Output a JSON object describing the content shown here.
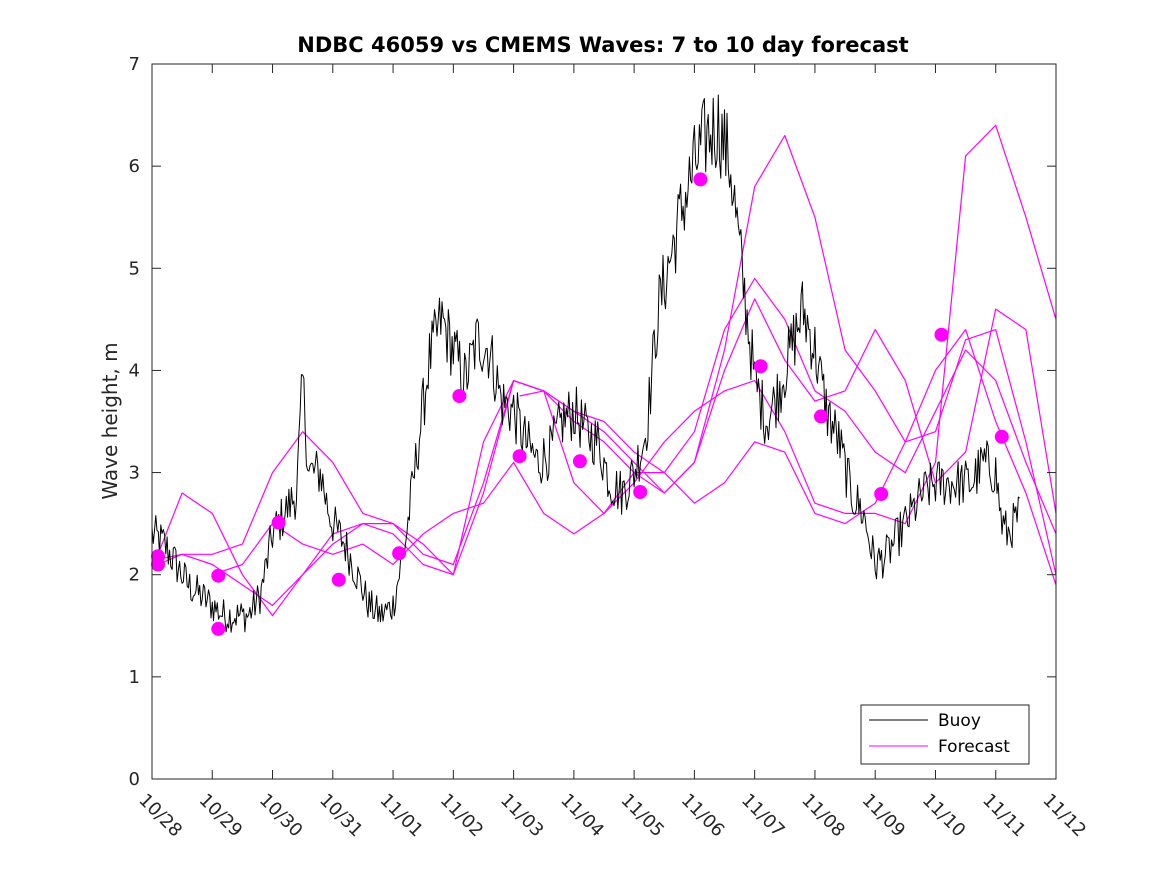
{
  "chart_data": {
    "type": "line",
    "title": "NDBC 46059 vs CMEMS Waves: 7 to 10 day forecast",
    "xlabel": "",
    "ylabel": "Wave height, m",
    "xlim": [
      0,
      15
    ],
    "ylim": [
      0,
      7
    ],
    "x_tick_labels": [
      "10/28",
      "10/29",
      "10/30",
      "10/31",
      "11/01",
      "11/02",
      "11/03",
      "11/04",
      "11/05",
      "11/06",
      "11/07",
      "11/08",
      "11/09",
      "11/10",
      "11/11",
      "11/12"
    ],
    "y_ticks": [
      0,
      1,
      2,
      3,
      4,
      5,
      6,
      7
    ],
    "legend": {
      "position": "bottom-right",
      "entries": [
        "Buoy",
        "Forecast"
      ]
    },
    "colors": {
      "buoy": "#000000",
      "forecast": "#ff00ff"
    },
    "buoy": {
      "name": "Buoy",
      "x": [
        0.0,
        0.2,
        0.4,
        0.6,
        0.8,
        1.0,
        1.2,
        1.4,
        1.6,
        1.8,
        2.0,
        2.2,
        2.4,
        2.5,
        2.6,
        2.8,
        2.9,
        3.0,
        3.2,
        3.4,
        3.6,
        3.8,
        4.0,
        4.2,
        4.4,
        4.6,
        4.8,
        5.0,
        5.2,
        5.4,
        5.6,
        5.8,
        6.0,
        6.2,
        6.4,
        6.6,
        6.8,
        7.0,
        7.2,
        7.4,
        7.6,
        7.8,
        8.0,
        8.2,
        8.4,
        8.6,
        8.8,
        9.0,
        9.2,
        9.4,
        9.6,
        9.8,
        10.0,
        10.2,
        10.4,
        10.6,
        10.8,
        11.0,
        11.2,
        11.4,
        11.6,
        11.8,
        12.0,
        12.2,
        12.4,
        12.6,
        12.8,
        13.0,
        13.2,
        13.4,
        13.6,
        13.8,
        14.0,
        14.1,
        14.2,
        14.3,
        14.4
      ],
      "y": [
        2.4,
        2.3,
        2.1,
        1.9,
        1.8,
        1.7,
        1.6,
        1.6,
        1.6,
        1.8,
        2.4,
        2.6,
        2.8,
        3.9,
        3.0,
        3.0,
        2.7,
        2.5,
        2.3,
        2.0,
        1.7,
        1.6,
        1.7,
        2.3,
        3.2,
        4.1,
        4.5,
        4.2,
        3.9,
        4.3,
        4.2,
        3.7,
        3.6,
        3.3,
        3.1,
        3.2,
        3.5,
        3.6,
        3.4,
        3.3,
        2.9,
        2.8,
        3.0,
        3.4,
        4.6,
        5.1,
        5.6,
        6.0,
        6.3,
        6.4,
        6.0,
        4.9,
        3.9,
        3.5,
        3.8,
        4.2,
        4.6,
        4.2,
        3.6,
        3.3,
        2.8,
        2.6,
        2.1,
        2.2,
        2.4,
        2.6,
        2.8,
        2.9,
        2.9,
        2.9,
        2.9,
        3.1,
        3.0,
        2.5,
        2.4,
        2.5,
        2.6
      ]
    },
    "forecast_series": [
      {
        "name": "Forecast",
        "x": [
          0.1,
          0.5,
          1.0,
          1.5,
          2.0,
          2.5,
          3.0,
          3.5,
          4.0,
          4.5,
          5.0,
          5.5,
          6.0,
          6.5,
          7.0,
          7.5,
          8.0,
          8.5,
          9.0,
          9.5,
          10.0,
          10.5,
          11.0,
          11.5,
          12.0,
          12.5,
          13.0,
          13.5,
          14.0,
          14.5,
          15.0
        ],
        "y": [
          2.15,
          2.2,
          2.2,
          2.3,
          3.0,
          3.4,
          3.1,
          2.6,
          2.5,
          2.2,
          2.1,
          2.9,
          3.9,
          3.8,
          3.6,
          3.5,
          3.2,
          3.0,
          3.4,
          4.4,
          4.9,
          4.5,
          3.8,
          3.6,
          3.2,
          3.0,
          3.6,
          4.2,
          3.9,
          3.1,
          2.4
        ]
      },
      {
        "name": "Forecast",
        "x": [
          0.1,
          0.5,
          1.0,
          1.5,
          2.0,
          2.5,
          3.0,
          3.5,
          4.0,
          4.5,
          5.0,
          5.5,
          6.0,
          6.5,
          7.0,
          7.5,
          8.0,
          8.5,
          9.0,
          9.5,
          10.0,
          10.5,
          11.0,
          11.5,
          12.0,
          12.5,
          13.0,
          13.5,
          14.0,
          14.5,
          15.0
        ],
        "y": [
          2.1,
          2.2,
          2.1,
          1.9,
          1.7,
          2.0,
          2.3,
          2.5,
          2.5,
          2.3,
          2.0,
          2.8,
          3.9,
          3.8,
          3.5,
          3.3,
          3.0,
          2.8,
          3.1,
          4.2,
          5.8,
          6.3,
          5.5,
          4.2,
          3.8,
          3.3,
          3.4,
          4.3,
          4.4,
          3.3,
          2.0
        ]
      },
      {
        "name": "Forecast",
        "x": [
          0.1,
          0.5,
          1.0,
          1.5,
          2.0,
          2.5,
          3.0,
          3.5,
          4.0,
          4.5,
          5.0,
          5.5,
          6.0,
          6.5,
          7.0,
          7.5,
          8.0,
          8.5,
          9.0,
          9.5,
          10.0,
          10.5,
          11.0,
          11.5,
          12.0,
          12.5,
          13.0,
          13.5,
          14.0,
          14.5,
          15.0
        ],
        "y": [
          2.2,
          2.8,
          2.6,
          2.0,
          1.6,
          2.0,
          2.4,
          2.5,
          2.4,
          2.1,
          2.0,
          3.3,
          3.9,
          3.8,
          3.6,
          3.4,
          3.1,
          2.8,
          3.1,
          4.0,
          4.7,
          4.1,
          3.7,
          3.8,
          4.4,
          3.9,
          2.9,
          3.2,
          4.6,
          4.4,
          2.6
        ]
      },
      {
        "name": "Forecast",
        "x": [
          1.0,
          1.5,
          2.0,
          2.5,
          3.0,
          3.5,
          4.0,
          4.5,
          5.0,
          5.5,
          6.0,
          6.5,
          7.0,
          7.5,
          8.0,
          8.5,
          9.0,
          9.5,
          10.0,
          10.5,
          11.0,
          11.5,
          12.0,
          12.5,
          13.0,
          13.5,
          14.0,
          14.5,
          15.0
        ],
        "y": [
          2.0,
          2.1,
          2.5,
          2.3,
          2.2,
          2.3,
          2.1,
          2.4,
          2.6,
          2.7,
          3.1,
          2.6,
          2.4,
          2.6,
          2.9,
          3.3,
          3.6,
          3.8,
          3.9,
          3.4,
          2.7,
          2.6,
          2.6,
          2.5,
          3.1,
          6.1,
          6.4,
          5.5,
          4.5
        ]
      },
      {
        "name": "Forecast",
        "x": [
          6.1,
          6.5,
          7.0,
          7.5,
          8.0,
          8.5,
          9.0,
          9.5,
          10.0,
          10.5,
          11.0,
          11.5,
          12.0,
          12.5,
          13.0,
          13.5,
          14.0,
          14.5,
          15.0
        ],
        "y": [
          3.75,
          3.8,
          2.9,
          2.6,
          3.0,
          3.0,
          2.7,
          2.9,
          3.3,
          3.2,
          2.6,
          2.5,
          2.7,
          3.3,
          4.0,
          4.4,
          3.5,
          2.8,
          1.9
        ]
      }
    ],
    "forecast_markers": {
      "x": [
        0.1,
        0.1,
        1.1,
        1.1,
        2.1,
        3.1,
        4.1,
        5.1,
        6.1,
        7.1,
        8.1,
        9.1,
        10.1,
        11.1,
        12.1,
        13.1,
        14.1
      ],
      "y": [
        2.18,
        2.1,
        1.99,
        1.47,
        2.51,
        1.95,
        2.21,
        3.75,
        3.16,
        3.11,
        2.81,
        5.87,
        4.04,
        3.55,
        2.79,
        4.35,
        3.35
      ]
    }
  }
}
